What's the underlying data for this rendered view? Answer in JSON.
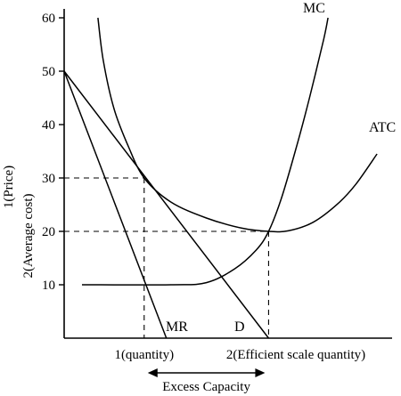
{
  "chart_data": {
    "type": "line",
    "ylim": [
      0,
      60
    ],
    "yticks": [
      10,
      20,
      30,
      40,
      50,
      60
    ],
    "ylabel_line1": "1(Price)",
    "ylabel_line2": "2(Average cost)",
    "xtick_labels": {
      "quantity": "1(quantity)",
      "efficient": "2(Efficient scale quantity)"
    },
    "excess_capacity_label": "Excess Capacity",
    "markers": {
      "q_mc": 2.25,
      "q_eff": 5.75,
      "p_mc": 30,
      "p_eff": 20
    },
    "series": [
      {
        "name": "D",
        "points": [
          [
            0,
            50
          ],
          [
            5.75,
            0
          ]
        ]
      },
      {
        "name": "MR",
        "points": [
          [
            0,
            50
          ],
          [
            2.875,
            0
          ]
        ]
      },
      {
        "name": "ATC",
        "points": [
          [
            0.95,
            60
          ],
          [
            1.1,
            52
          ],
          [
            1.4,
            43
          ],
          [
            1.8,
            36
          ],
          [
            2.25,
            30
          ],
          [
            3.0,
            25.5
          ],
          [
            4.0,
            22.5
          ],
          [
            5.0,
            20.6
          ],
          [
            5.75,
            20
          ],
          [
            6.3,
            20.1
          ],
          [
            7.0,
            21.7
          ],
          [
            7.7,
            25.2
          ],
          [
            8.2,
            28.8
          ],
          [
            8.8,
            34.5
          ]
        ]
      },
      {
        "name": "MC",
        "points": [
          [
            0.5,
            10
          ],
          [
            3.0,
            10
          ],
          [
            4.0,
            10.4
          ],
          [
            4.8,
            13
          ],
          [
            5.4,
            16.5
          ],
          [
            5.75,
            20
          ],
          [
            6.1,
            26
          ],
          [
            6.5,
            35
          ],
          [
            6.9,
            45
          ],
          [
            7.3,
            56
          ],
          [
            7.42,
            60
          ]
        ]
      }
    ]
  }
}
